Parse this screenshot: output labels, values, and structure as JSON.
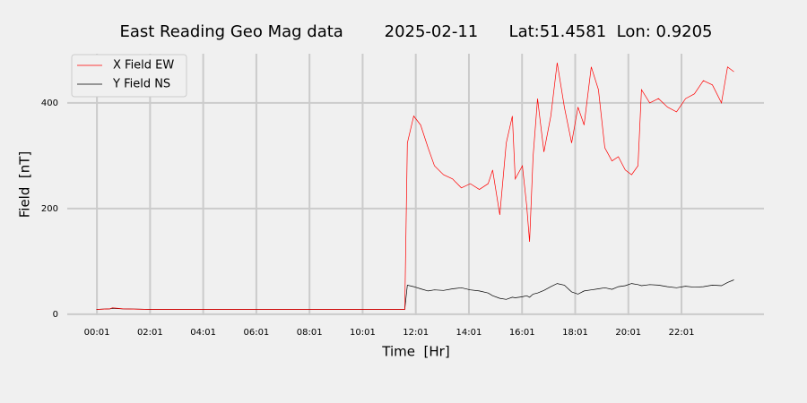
{
  "chart_data": {
    "type": "line",
    "title": "East Reading Geo Mag data        2025-02-11      Lat:51.4581  Lon: 0.9205",
    "xlabel": "Time  [Hr]",
    "ylabel": "Field  [nT]",
    "x": [
      0,
      0.5,
      0.6,
      1,
      2,
      3,
      4,
      5,
      6,
      7,
      8,
      9,
      10,
      11,
      11.6,
      11.7,
      11.94,
      12.2,
      12.48,
      12.72,
      13.06,
      13.4,
      13.73,
      14.07,
      14.41,
      14.74,
      14.91,
      15.18,
      15.42,
      15.65,
      15.76,
      16.03,
      16.19,
      16.3,
      16.43,
      16.6,
      16.84,
      17.1,
      17.34,
      17.61,
      17.88,
      18.12,
      18.35,
      18.62,
      18.89,
      19.13,
      19.4,
      19.64,
      19.9,
      20.14,
      20.38,
      20.51,
      20.82,
      21.15,
      21.49,
      21.83,
      22.17,
      22.5,
      22.84,
      23.18,
      23.52,
      23.75,
      23.99
    ],
    "series": [
      {
        "name": "X Field EW",
        "color": "#ff0000",
        "values": [
          9,
          10,
          12,
          10,
          9,
          9,
          9,
          9,
          9,
          9,
          9,
          9,
          9,
          9,
          9,
          324,
          375,
          358,
          315,
          281,
          264,
          256,
          239,
          247,
          236,
          247,
          273,
          188,
          324,
          375,
          256,
          281,
          205,
          137,
          298,
          408,
          307,
          375,
          476,
          392,
          324,
          392,
          358,
          468,
          425,
          315,
          290,
          298,
          273,
          264,
          281,
          425,
          400,
          408,
          392,
          383,
          408,
          417,
          442,
          434,
          400,
          468,
          459
        ]
      },
      {
        "name": "Y Field NS",
        "color": "#000000",
        "values": [
          9,
          10,
          11,
          10,
          9,
          9,
          9,
          9,
          9,
          9,
          9,
          9,
          9,
          9,
          9,
          55,
          52,
          48,
          44,
          46,
          45,
          48,
          50,
          46,
          44,
          40,
          35,
          30,
          28,
          32,
          31,
          33,
          35,
          32,
          38,
          40,
          45,
          52,
          58,
          55,
          42,
          38,
          44,
          46,
          48,
          50,
          47,
          52,
          54,
          58,
          56,
          54,
          56,
          55,
          52,
          50,
          53,
          51,
          52,
          55,
          54,
          60,
          65
        ]
      }
    ],
    "xlim": [
      -1.1,
      25.12
    ],
    "ylim": [
      -2,
      493
    ],
    "xticks": [
      {
        "value": 0.0167,
        "label": "00:01"
      },
      {
        "value": 2.0167,
        "label": "02:01"
      },
      {
        "value": 4.0167,
        "label": "04:01"
      },
      {
        "value": 6.0167,
        "label": "06:01"
      },
      {
        "value": 8.0167,
        "label": "08:01"
      },
      {
        "value": 10.0167,
        "label": "10:01"
      },
      {
        "value": 12.0167,
        "label": "12:01"
      },
      {
        "value": 14.0167,
        "label": "14:01"
      },
      {
        "value": 16.0167,
        "label": "16:01"
      },
      {
        "value": 18.0167,
        "label": "18:01"
      },
      {
        "value": 20.0167,
        "label": "20:01"
      },
      {
        "value": 22.0167,
        "label": "22:01"
      }
    ],
    "yticks": [
      0,
      200,
      400
    ],
    "grid": true,
    "legend": "upper left"
  }
}
